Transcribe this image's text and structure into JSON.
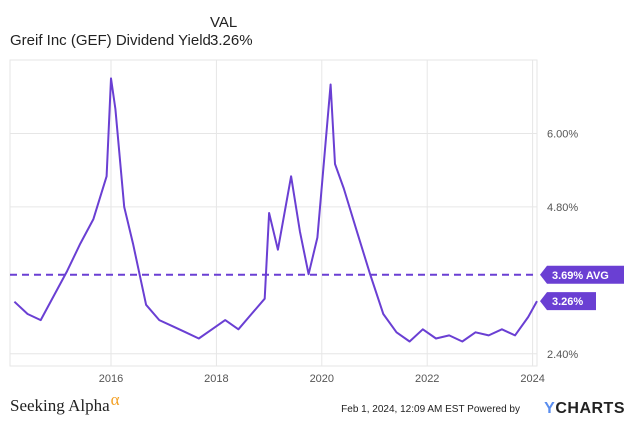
{
  "legend": {
    "column_header": "VAL",
    "series_name": "Greif Inc (GEF) Dividend Yield",
    "series_value": "3.26%"
  },
  "colors": {
    "line": "#6a3fd3",
    "avg_line": "#6a3fd3",
    "badge_bg": "#6a3fd3",
    "grid": "#e6e6e6",
    "axis_text": "#555555"
  },
  "chart_data": {
    "type": "line",
    "series": [
      {
        "name": "Greif Inc (GEF) Dividend Yield",
        "x": [
          "2014-03",
          "2014-06",
          "2014-09",
          "2014-12",
          "2015-03",
          "2015-06",
          "2015-09",
          "2015-12",
          "2016-01",
          "2016-02",
          "2016-04",
          "2016-06",
          "2016-09",
          "2016-12",
          "2017-03",
          "2017-06",
          "2017-09",
          "2017-12",
          "2018-03",
          "2018-06",
          "2018-09",
          "2018-12",
          "2019-01",
          "2019-03",
          "2019-06",
          "2019-08",
          "2019-10",
          "2019-12",
          "2020-03",
          "2020-04",
          "2020-06",
          "2020-09",
          "2020-12",
          "2021-03",
          "2021-06",
          "2021-09",
          "2021-12",
          "2022-03",
          "2022-06",
          "2022-09",
          "2022-12",
          "2023-03",
          "2023-06",
          "2023-09",
          "2023-12",
          "2024-02"
        ],
        "values": [
          3.25,
          3.05,
          2.95,
          3.35,
          3.75,
          4.2,
          4.6,
          5.3,
          6.9,
          6.4,
          4.8,
          4.2,
          3.2,
          2.95,
          2.85,
          2.75,
          2.65,
          2.8,
          2.95,
          2.8,
          3.05,
          3.3,
          4.7,
          4.1,
          5.3,
          4.4,
          3.7,
          4.3,
          6.8,
          5.5,
          5.1,
          4.4,
          3.7,
          3.05,
          2.75,
          2.6,
          2.8,
          2.65,
          2.7,
          2.6,
          2.75,
          2.7,
          2.8,
          2.7,
          3.0,
          3.26
        ]
      }
    ],
    "average": 3.69,
    "average_label": "3.69% AVG",
    "last_label": "3.26%",
    "y_ticks": [
      "2.40%",
      "4.80%",
      "6.00%"
    ],
    "y_tick_values": [
      2.4,
      4.8,
      6.0
    ],
    "x_ticks": [
      "2016",
      "2018",
      "2020",
      "2022",
      "2024"
    ],
    "ylim": [
      2.2,
      7.2
    ],
    "xlim": [
      "2014-02",
      "2024-02"
    ],
    "grid": true,
    "axis_side": "right"
  },
  "footer": {
    "brand": "Seeking Alpha",
    "brand_mark": "α",
    "timestamp": "Feb 1, 2024, 12:09 AM EST Powered by",
    "logo_y": "Y",
    "logo_rest": "CHARTS"
  }
}
